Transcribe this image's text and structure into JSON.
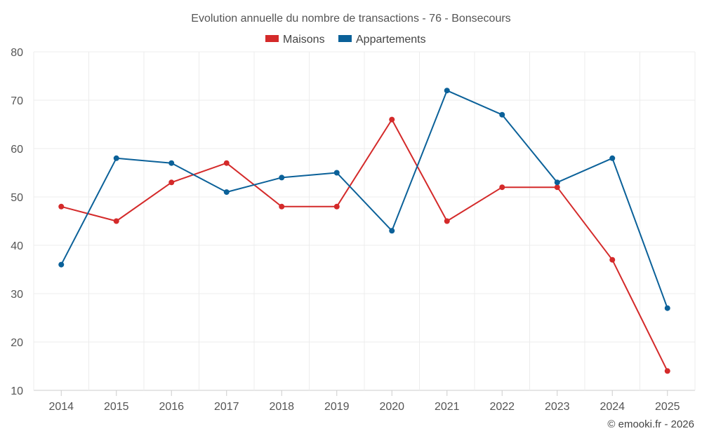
{
  "chart_data": {
    "type": "line",
    "title": "Evolution annuelle du nombre de transactions - 76 - Bonsecours",
    "categories": [
      "2014",
      "2015",
      "2016",
      "2017",
      "2018",
      "2019",
      "2020",
      "2021",
      "2022",
      "2023",
      "2024",
      "2025"
    ],
    "ylim": [
      10,
      80
    ],
    "yticks": [
      10,
      20,
      30,
      40,
      50,
      60,
      70,
      80
    ],
    "grid": true,
    "legend_position": "top-center",
    "series": [
      {
        "name": "Maisons",
        "color": "#d42a2a",
        "values": [
          48,
          45,
          53,
          57,
          48,
          48,
          66,
          45,
          52,
          52,
          37,
          14
        ]
      },
      {
        "name": "Appartements",
        "color": "#0b6199",
        "values": [
          36,
          58,
          57,
          51,
          54,
          55,
          43,
          72,
          67,
          53,
          58,
          27
        ]
      }
    ],
    "credit": "© emooki.fr - 2026"
  }
}
